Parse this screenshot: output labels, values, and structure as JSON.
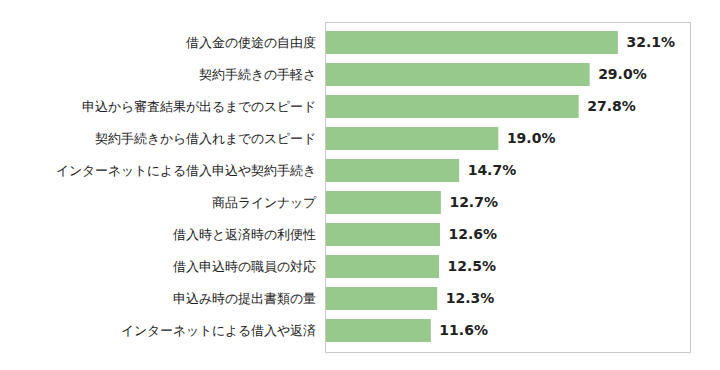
{
  "chart_data": {
    "type": "bar",
    "orientation": "horizontal",
    "categories": [
      "借入金の使途の自由度",
      "契約手続きの手軽さ",
      "申込から審査結果が出るまでのスピード",
      "契約手続きから借入れまでのスピード",
      "インターネットによる借入申込や契約手続き",
      "商品ラインナップ",
      "借入時と返済時の利便性",
      "借入申込時の職員の対応",
      "申込み時の提出書類の量",
      "インターネットによる借入や返済"
    ],
    "values": [
      32.1,
      29.0,
      27.8,
      19.0,
      14.7,
      12.7,
      12.6,
      12.5,
      12.3,
      11.6
    ],
    "value_labels": [
      "32.1%",
      "29.0%",
      "27.8%",
      "19.0%",
      "14.7%",
      "12.7%",
      "12.6%",
      "12.5%",
      "12.3%",
      "11.6%"
    ],
    "data_labels": true,
    "color": "#98c98c",
    "xlim": [
      0,
      40
    ],
    "xticks": [],
    "tick_labels": "y",
    "grid": false
  }
}
